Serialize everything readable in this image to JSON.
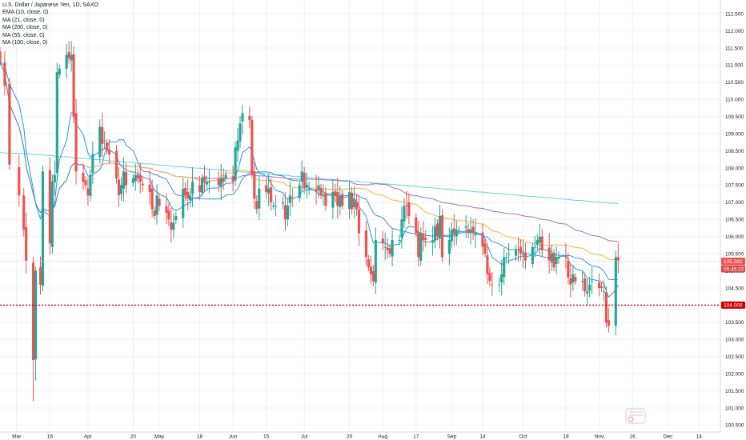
{
  "chart_data": {
    "type": "candlestick",
    "title": "U.S. Dollar / Japanese Yen, 1D, SAXO",
    "indicators": [
      {
        "label": "EMA (10, close, 0)",
        "color": "#2196f3"
      },
      {
        "label": "MA (21, close, 0)",
        "color": "#2196f3"
      },
      {
        "label": "MA (200, close, 0)",
        "color": "#5fd3d6"
      },
      {
        "label": "MA (55, close, 0)",
        "color": "#9b59b6"
      },
      {
        "label": "MA (100, close, 0)",
        "color": "#9b59b6"
      }
    ],
    "colors": {
      "up": "#26a69a",
      "down": "#ef5350",
      "ema10": "#2196f3",
      "ma21": "#f7b23b",
      "ma200": "#5fd3d6",
      "ma55": "#3f8fd6",
      "ma100": "#a86bc8",
      "last_price": "#ef5350",
      "level": "#d40000"
    },
    "ylim": [
      100.3,
      112.9
    ],
    "y_ticks": [
      "100.500",
      "101.000",
      "101.500",
      "102.000",
      "102.500",
      "103.000",
      "103.500",
      "104.000",
      "104.500",
      "105.000",
      "105.500",
      "106.000",
      "106.500",
      "107.000",
      "107.500",
      "108.000",
      "108.500",
      "109.000",
      "109.500",
      "110.000",
      "110.500",
      "111.000",
      "111.500",
      "112.000",
      "112.500"
    ],
    "x_ticks": [
      {
        "label": "Mar",
        "date": "2020-03-02"
      },
      {
        "label": "16",
        "date": "2020-03-16"
      },
      {
        "label": "Apr",
        "date": "2020-04-01"
      },
      {
        "label": "20",
        "date": "2020-04-20"
      },
      {
        "label": "May",
        "date": "2020-05-01"
      },
      {
        "label": "18",
        "date": "2020-05-18"
      },
      {
        "label": "Jun",
        "date": "2020-06-01"
      },
      {
        "label": "15",
        "date": "2020-06-15"
      },
      {
        "label": "Jul",
        "date": "2020-07-01"
      },
      {
        "label": "20",
        "date": "2020-07-20"
      },
      {
        "label": "Aug",
        "date": "2020-08-03"
      },
      {
        "label": "17",
        "date": "2020-08-17"
      },
      {
        "label": "Sep",
        "date": "2020-09-01"
      },
      {
        "label": "14",
        "date": "2020-09-14"
      },
      {
        "label": "Oct",
        "date": "2020-10-01"
      },
      {
        "label": "19",
        "date": "2020-10-19"
      },
      {
        "label": "Nov",
        "date": "2020-11-02"
      },
      {
        "label": "16",
        "date": "2020-11-16"
      },
      {
        "label": "Dec",
        "date": "2020-12-01"
      },
      {
        "label": "14",
        "date": "2020-12-14"
      }
    ],
    "x_range": [
      "2020-02-24",
      "2020-12-23"
    ],
    "last_price": {
      "value": 105.282,
      "label": "105.282",
      "countdown": "05:45:22"
    },
    "horizontal_level": {
      "value": 104.0,
      "label": "104.000"
    },
    "close_path": [
      [
        "2020-02-24",
        111.1
      ],
      [
        "2020-02-26",
        110.4
      ],
      [
        "2020-02-28",
        108.1
      ],
      [
        "2020-03-03",
        107.2
      ],
      [
        "2020-03-05",
        106.2
      ],
      [
        "2020-03-06",
        105.3
      ],
      [
        "2020-03-09",
        102.4
      ],
      [
        "2020-03-10",
        105.0
      ],
      [
        "2020-03-12",
        104.6
      ],
      [
        "2020-03-13",
        107.9
      ],
      [
        "2020-03-16",
        105.8
      ],
      [
        "2020-03-17",
        107.6
      ],
      [
        "2020-03-18",
        107.8
      ],
      [
        "2020-03-19",
        110.8
      ],
      [
        "2020-03-20",
        110.9
      ],
      [
        "2020-03-23",
        111.3
      ],
      [
        "2020-03-24",
        111.2
      ],
      [
        "2020-03-25",
        111.3
      ],
      [
        "2020-03-26",
        109.5
      ],
      [
        "2020-03-27",
        107.9
      ],
      [
        "2020-03-30",
        107.6
      ],
      [
        "2020-03-31",
        107.5
      ],
      [
        "2020-04-01",
        107.2
      ],
      [
        "2020-04-02",
        107.8
      ],
      [
        "2020-04-03",
        108.4
      ],
      [
        "2020-04-06",
        109.2
      ],
      [
        "2020-04-07",
        108.7
      ],
      [
        "2020-04-08",
        108.8
      ],
      [
        "2020-04-09",
        108.5
      ],
      [
        "2020-04-10",
        108.4
      ],
      [
        "2020-04-13",
        107.7
      ],
      [
        "2020-04-14",
        107.2
      ],
      [
        "2020-04-15",
        107.5
      ],
      [
        "2020-04-16",
        107.9
      ],
      [
        "2020-04-17",
        107.5
      ],
      [
        "2020-04-20",
        107.7
      ],
      [
        "2020-04-21",
        107.8
      ],
      [
        "2020-04-22",
        107.7
      ],
      [
        "2020-04-23",
        107.6
      ],
      [
        "2020-04-24",
        107.5
      ],
      [
        "2020-04-27",
        107.3
      ],
      [
        "2020-04-28",
        106.8
      ],
      [
        "2020-04-29",
        106.6
      ],
      [
        "2020-04-30",
        107.2
      ],
      [
        "2020-05-01",
        106.9
      ],
      [
        "2020-05-04",
        106.7
      ],
      [
        "2020-05-05",
        106.5
      ],
      [
        "2020-05-06",
        106.2
      ],
      [
        "2020-05-07",
        106.4
      ],
      [
        "2020-05-08",
        106.6
      ],
      [
        "2020-05-11",
        107.4
      ],
      [
        "2020-05-12",
        107.2
      ],
      [
        "2020-05-13",
        107.1
      ],
      [
        "2020-05-14",
        107.2
      ],
      [
        "2020-05-15",
        107.6
      ],
      [
        "2020-05-18",
        107.3
      ],
      [
        "2020-05-19",
        107.7
      ],
      [
        "2020-05-20",
        107.6
      ],
      [
        "2020-05-21",
        107.6
      ],
      [
        "2020-05-22",
        107.6
      ],
      [
        "2020-05-26",
        107.5
      ],
      [
        "2020-05-27",
        107.7
      ],
      [
        "2020-05-28",
        107.6
      ],
      [
        "2020-05-29",
        107.8
      ],
      [
        "2020-06-01",
        107.6
      ],
      [
        "2020-06-02",
        108.6
      ],
      [
        "2020-06-03",
        108.8
      ],
      [
        "2020-06-04",
        109.3
      ],
      [
        "2020-06-05",
        109.6
      ],
      [
        "2020-06-08",
        109.4
      ],
      [
        "2020-06-09",
        107.8
      ],
      [
        "2020-06-10",
        107.1
      ],
      [
        "2020-06-11",
        106.8
      ],
      [
        "2020-06-12",
        107.4
      ],
      [
        "2020-06-15",
        107.3
      ],
      [
        "2020-06-16",
        107.4
      ],
      [
        "2020-06-17",
        107.0
      ],
      [
        "2020-06-18",
        106.9
      ],
      [
        "2020-06-19",
        106.9
      ],
      [
        "2020-06-22",
        107.0
      ],
      [
        "2020-06-23",
        106.5
      ],
      [
        "2020-06-24",
        106.9
      ],
      [
        "2020-06-25",
        107.2
      ],
      [
        "2020-06-26",
        107.1
      ],
      [
        "2020-06-29",
        107.5
      ],
      [
        "2020-06-30",
        107.9
      ],
      [
        "2020-07-01",
        107.4
      ],
      [
        "2020-07-02",
        107.5
      ],
      [
        "2020-07-03",
        107.4
      ],
      [
        "2020-07-06",
        107.3
      ],
      [
        "2020-07-07",
        107.5
      ],
      [
        "2020-07-08",
        107.2
      ],
      [
        "2020-07-09",
        107.2
      ],
      [
        "2020-07-10",
        106.9
      ],
      [
        "2020-07-13",
        107.3
      ],
      [
        "2020-07-14",
        107.2
      ],
      [
        "2020-07-15",
        106.9
      ],
      [
        "2020-07-16",
        107.2
      ],
      [
        "2020-07-17",
        106.9
      ],
      [
        "2020-07-20",
        107.3
      ],
      [
        "2020-07-21",
        106.8
      ],
      [
        "2020-07-22",
        107.1
      ],
      [
        "2020-07-23",
        106.8
      ],
      [
        "2020-07-24",
        106.1
      ],
      [
        "2020-07-27",
        105.4
      ],
      [
        "2020-07-28",
        105.1
      ],
      [
        "2020-07-29",
        104.9
      ],
      [
        "2020-07-30",
        104.7
      ],
      [
        "2020-07-31",
        105.9
      ],
      [
        "2020-08-03",
        105.8
      ],
      [
        "2020-08-04",
        105.7
      ],
      [
        "2020-08-05",
        105.6
      ],
      [
        "2020-08-06",
        105.5
      ],
      [
        "2020-08-07",
        105.9
      ],
      [
        "2020-08-10",
        105.9
      ],
      [
        "2020-08-11",
        106.5
      ],
      [
        "2020-08-12",
        106.9
      ],
      [
        "2020-08-13",
        106.9
      ],
      [
        "2020-08-14",
        106.6
      ],
      [
        "2020-08-17",
        106.1
      ],
      [
        "2020-08-18",
        105.4
      ],
      [
        "2020-08-19",
        106.1
      ],
      [
        "2020-08-20",
        105.9
      ],
      [
        "2020-08-21",
        105.9
      ],
      [
        "2020-08-24",
        105.9
      ],
      [
        "2020-08-25",
        106.3
      ],
      [
        "2020-08-26",
        106.0
      ],
      [
        "2020-08-27",
        106.6
      ],
      [
        "2020-08-28",
        105.4
      ],
      [
        "2020-08-31",
        105.9
      ],
      [
        "2020-09-01",
        106.2
      ],
      [
        "2020-09-02",
        106.1
      ],
      [
        "2020-09-03",
        106.2
      ],
      [
        "2020-09-04",
        106.2
      ],
      [
        "2020-09-07",
        106.3
      ],
      [
        "2020-09-08",
        106.1
      ],
      [
        "2020-09-09",
        106.2
      ],
      [
        "2020-09-10",
        106.1
      ],
      [
        "2020-09-11",
        106.1
      ],
      [
        "2020-09-14",
        105.7
      ],
      [
        "2020-09-15",
        105.5
      ],
      [
        "2020-09-16",
        104.9
      ],
      [
        "2020-09-17",
        104.7
      ],
      [
        "2020-09-18",
        104.6
      ],
      [
        "2020-09-21",
        104.6
      ],
      [
        "2020-09-22",
        104.9
      ],
      [
        "2020-09-23",
        105.4
      ],
      [
        "2020-09-24",
        105.4
      ],
      [
        "2020-09-25",
        105.5
      ],
      [
        "2020-09-28",
        105.6
      ],
      [
        "2020-09-29",
        105.6
      ],
      [
        "2020-09-30",
        105.5
      ],
      [
        "2020-10-01",
        105.5
      ],
      [
        "2020-10-02",
        105.3
      ],
      [
        "2020-10-05",
        105.7
      ],
      [
        "2020-10-06",
        105.7
      ],
      [
        "2020-10-07",
        105.9
      ],
      [
        "2020-10-08",
        106.0
      ],
      [
        "2020-10-09",
        105.6
      ],
      [
        "2020-10-12",
        105.3
      ],
      [
        "2020-10-13",
        105.5
      ],
      [
        "2020-10-14",
        105.1
      ],
      [
        "2020-10-15",
        105.4
      ],
      [
        "2020-10-16",
        105.4
      ],
      [
        "2020-10-19",
        105.4
      ],
      [
        "2020-10-20",
        104.8
      ],
      [
        "2020-10-21",
        104.6
      ],
      [
        "2020-10-22",
        104.9
      ],
      [
        "2020-10-23",
        104.7
      ],
      [
        "2020-10-26",
        104.7
      ],
      [
        "2020-10-27",
        104.4
      ],
      [
        "2020-10-28",
        104.4
      ],
      [
        "2020-10-29",
        104.6
      ],
      [
        "2020-10-30",
        104.7
      ],
      [
        "2020-11-02",
        104.5
      ],
      [
        "2020-11-03",
        104.5
      ],
      [
        "2020-11-04",
        104.4
      ],
      [
        "2020-11-05",
        103.5
      ],
      [
        "2020-11-06",
        103.4
      ],
      [
        "2020-11-09",
        105.4
      ],
      [
        "2020-11-10",
        105.3
      ]
    ]
  }
}
